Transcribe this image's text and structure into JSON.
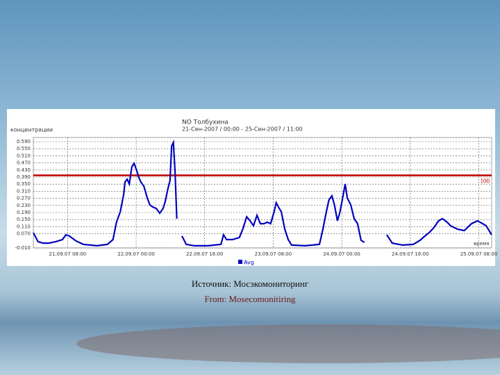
{
  "chart_data": {
    "type": "line",
    "title": "NO Толбухина",
    "subtitle": "21-Сен-2007 / 00:00 - 25-Сен-2007 / 11:00",
    "y_label": "концентрации",
    "x_label": "время",
    "xlim": [
      0,
      107
    ],
    "xticks": [
      {
        "value": 8,
        "label": "21.09.07 08:00"
      },
      {
        "value": 24,
        "label": "22.09.07 00:00"
      },
      {
        "value": 40,
        "label": "22.09.07 16:00"
      },
      {
        "value": 56,
        "label": "23.09.07 08:00"
      },
      {
        "value": 72,
        "label": "24.09.07 00:00"
      },
      {
        "value": 88,
        "label": "24.09.07 16:00"
      },
      {
        "value": 104,
        "label": "25.09.07 08:00"
      }
    ],
    "ylim": [
      -0.01,
      0.59
    ],
    "yticks": [
      {
        "value": -0.01,
        "label": "-0.010"
      },
      {
        "value": 0.07,
        "label": "0.070"
      },
      {
        "value": 0.11,
        "label": "0.110"
      },
      {
        "value": 0.15,
        "label": "0.150"
      },
      {
        "value": 0.19,
        "label": "0.190"
      },
      {
        "value": 0.23,
        "label": "0.230"
      },
      {
        "value": 0.27,
        "label": "0.270"
      },
      {
        "value": 0.31,
        "label": "0.310"
      },
      {
        "value": 0.35,
        "label": "0.350"
      },
      {
        "value": 0.39,
        "label": "0.390"
      },
      {
        "value": 0.43,
        "label": "0.430"
      },
      {
        "value": 0.47,
        "label": "0.470"
      },
      {
        "value": 0.51,
        "label": "0.510"
      },
      {
        "value": 0.55,
        "label": "0.550"
      },
      {
        "value": 0.59,
        "label": "0.590"
      }
    ],
    "grid": true,
    "threshold": {
      "value": 0.4,
      "label": "100",
      "color": "#c00000"
    },
    "x": [
      0,
      1.1,
      2.3,
      3.6,
      5.2,
      6.8,
      7.6,
      8.4,
      10.0,
      11.7,
      13.3,
      14.9,
      17.3,
      18.6,
      19.4,
      20.3,
      21.1,
      21.4,
      21.9,
      22.4,
      23.0,
      23.5,
      24.1,
      24.6,
      25.1,
      25.8,
      26.6,
      27.2,
      27.9,
      28.7,
      29.5,
      30.3,
      30.8,
      31.4,
      31.9,
      32.3,
      32.7,
      33.1,
      33.5,
      34.0,
      34.7,
      35.7,
      37.6,
      40.8,
      43.8,
      44.4,
      45.1,
      46.5,
      48.1,
      48.9,
      49.8,
      50.6,
      51.4,
      52.2,
      53.0,
      53.8,
      54.6,
      55.4,
      56.2,
      56.7,
      57.4,
      57.9,
      58.7,
      59.5,
      60.3,
      63.5,
      66.8,
      67.6,
      68.4,
      69.0,
      69.7,
      70.3,
      71.0,
      71.6,
      72.3,
      72.8,
      73.3,
      74.1,
      74.9,
      75.7,
      76.5,
      77.3,
      78.0,
      82.5,
      83.8,
      86.2,
      88.7,
      90.3,
      91.4,
      92.4,
      93.5,
      94.6,
      95.5,
      96.6,
      97.4,
      99.0,
      100.6,
      102.3,
      103.7,
      104.9,
      105.7,
      107.0
    ],
    "series": [
      {
        "name": "Avg",
        "color": "#0000c0",
        "values": [
          0.076,
          0.025,
          0.017,
          0.017,
          0.025,
          0.037,
          0.064,
          0.057,
          0.029,
          0.01,
          0.006,
          0.002,
          0.01,
          0.037,
          0.135,
          0.194,
          0.292,
          0.362,
          0.378,
          0.351,
          0.449,
          0.468,
          0.429,
          0.39,
          0.362,
          0.339,
          0.272,
          0.233,
          0.221,
          0.213,
          0.186,
          0.213,
          0.253,
          0.323,
          0.37,
          0.566,
          0.586,
          0.409,
          0.155,
          null,
          0.057,
          0.01,
          0.002,
          0.002,
          0.01,
          0.064,
          0.037,
          0.037,
          0.049,
          0.096,
          0.166,
          0.143,
          0.115,
          0.174,
          0.127,
          0.127,
          0.135,
          0.127,
          0.194,
          0.245,
          0.213,
          0.194,
          0.096,
          0.037,
          0.006,
          0.002,
          0.01,
          0.096,
          0.194,
          0.26,
          0.284,
          0.233,
          0.143,
          0.194,
          0.284,
          0.351,
          0.272,
          0.233,
          0.155,
          0.127,
          0.033,
          0.021,
          null,
          0.064,
          0.017,
          0.006,
          0.01,
          0.033,
          0.057,
          0.076,
          0.104,
          0.143,
          0.155,
          0.135,
          0.115,
          0.096,
          0.088,
          0.127,
          0.143,
          0.127,
          0.115,
          0.064
        ]
      }
    ]
  },
  "caption": "Источник: Мосэкомониторинг",
  "caption_en": "From: Mosecomonitiring"
}
